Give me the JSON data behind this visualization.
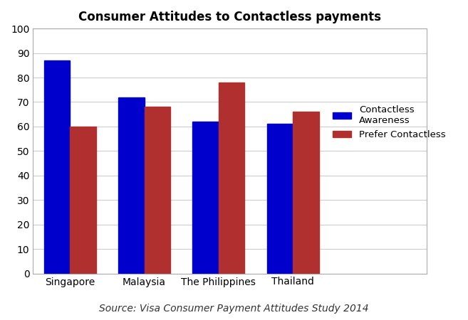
{
  "title": "Consumer Attitudes to Contactless payments",
  "title_fontsize": 12,
  "title_fontweight": "bold",
  "categories": [
    "Singapore",
    "Malaysia",
    "The Philippines",
    "Thailand"
  ],
  "series": [
    {
      "label": "Contactless\nAwareness",
      "values": [
        87,
        72,
        62,
        61
      ],
      "color": "#0000CC"
    },
    {
      "label": "Prefer Contactless",
      "values": [
        60,
        68,
        78,
        66
      ],
      "color": "#B03030"
    }
  ],
  "ylim": [
    0,
    100
  ],
  "yticks": [
    0,
    10,
    20,
    30,
    40,
    50,
    60,
    70,
    80,
    90,
    100
  ],
  "grid_color": "#CCCCCC",
  "source_text": "Source: Visa Consumer Payment Attitudes Study 2014",
  "source_fontsize": 10,
  "bar_width": 0.35,
  "figure_facecolor": "#FFFFFF",
  "axes_facecolor": "#FFFFFF",
  "border_color": "#AAAAAA"
}
